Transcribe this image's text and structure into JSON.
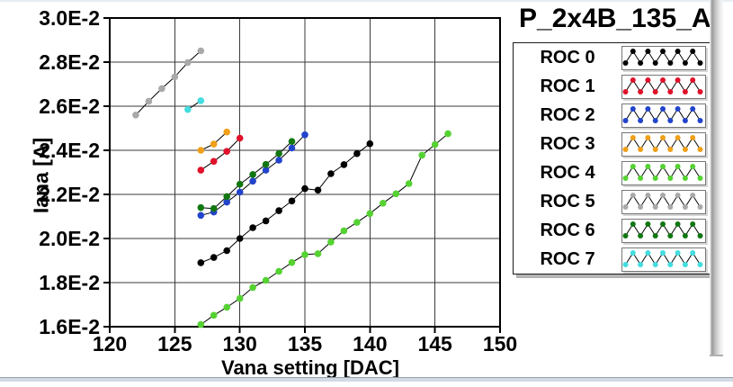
{
  "chart_data": {
    "type": "line",
    "title": "P_2x4B_135_A",
    "xlabel": "Vana setting [DAC]",
    "ylabel": "Iana [A]",
    "xlim": [
      120,
      150
    ],
    "ylim": [
      0.016,
      0.03
    ],
    "x_ticks": [
      120,
      125,
      130,
      135,
      140,
      145,
      150
    ],
    "x_tick_labels": [
      "120",
      "125",
      "130",
      "135",
      "140",
      "145",
      "150"
    ],
    "y_ticks": [
      0.016,
      0.018,
      0.02,
      0.022,
      0.024,
      0.026,
      0.028,
      0.03
    ],
    "y_tick_labels": [
      "1.6E-2",
      "1.8E-2",
      "2.0E-2",
      "2.2E-2",
      "2.4E-2",
      "2.6E-2",
      "2.8E-2",
      "3.0E-2"
    ],
    "grid": true,
    "legend_position": "right",
    "marker": "circle",
    "connector_line_color": "#000000",
    "series": [
      {
        "name": "ROC 0",
        "color": "#000000",
        "x": [
          127,
          128,
          129,
          130,
          131,
          132,
          133,
          134,
          135,
          136,
          137,
          138,
          139,
          140
        ],
        "y": [
          0.0189,
          0.01914,
          0.01945,
          0.02,
          0.02049,
          0.0208,
          0.02126,
          0.0217,
          0.02226,
          0.02219,
          0.02294,
          0.02335,
          0.02385,
          0.0243
        ]
      },
      {
        "name": "ROC 1",
        "color": "#e0112a",
        "x": [
          127,
          128,
          129,
          130
        ],
        "y": [
          0.0231,
          0.0235,
          0.02395,
          0.02455
        ]
      },
      {
        "name": "ROC 2",
        "color": "#2244cc",
        "x": [
          127,
          128,
          129,
          130,
          131,
          132,
          133,
          134,
          135
        ],
        "y": [
          0.02105,
          0.0212,
          0.02165,
          0.0221,
          0.0226,
          0.0231,
          0.02355,
          0.0241,
          0.0247
        ]
      },
      {
        "name": "ROC 3",
        "color": "#f0a018",
        "x": [
          127,
          128,
          129
        ],
        "y": [
          0.024,
          0.02428,
          0.02483
        ]
      },
      {
        "name": "ROC 4",
        "color": "#55d232",
        "x": [
          127,
          128,
          129,
          130,
          131,
          132,
          133,
          134,
          135,
          136,
          137,
          138,
          139,
          140,
          141,
          142,
          143,
          144,
          145,
          146
        ],
        "y": [
          0.0161,
          0.01652,
          0.01688,
          0.01728,
          0.01778,
          0.0181,
          0.01851,
          0.01891,
          0.01927,
          0.01931,
          0.01984,
          0.02035,
          0.02073,
          0.02113,
          0.0216,
          0.02203,
          0.02249,
          0.02378,
          0.02426,
          0.02475
        ]
      },
      {
        "name": "ROC 5",
        "color": "#a9a9a9",
        "x": [
          122,
          123,
          124,
          125,
          126,
          127
        ],
        "y": [
          0.0256,
          0.02622,
          0.0268,
          0.02733,
          0.02798,
          0.02851
        ]
      },
      {
        "name": "ROC 6",
        "color": "#117711",
        "x": [
          127,
          128,
          129,
          130,
          131,
          132,
          133,
          134
        ],
        "y": [
          0.0214,
          0.02136,
          0.0219,
          0.02246,
          0.0229,
          0.02336,
          0.02385,
          0.0244
        ]
      },
      {
        "name": "ROC 7",
        "color": "#44dde0",
        "x": [
          126,
          127
        ],
        "y": [
          0.02585,
          0.02625
        ]
      }
    ]
  }
}
